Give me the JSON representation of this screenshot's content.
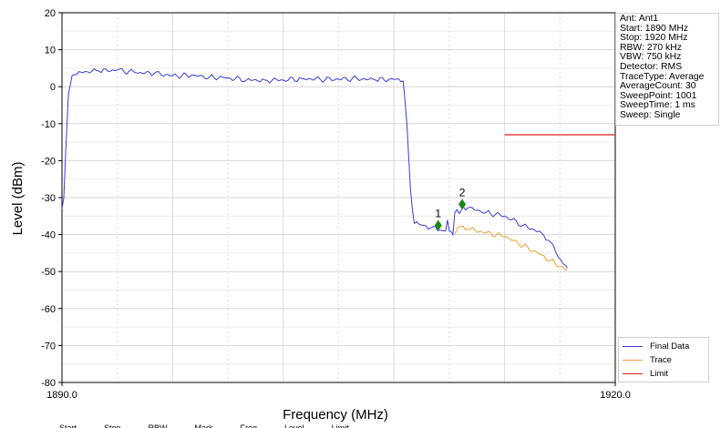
{
  "chart_data": {
    "type": "line",
    "xlabel": "Frequency (MHz)",
    "ylabel": "Level (dBm)",
    "xlim": [
      1890.0,
      1920.0
    ],
    "ylim": [
      -80,
      20
    ],
    "x_tick_labels": [
      "1890.0",
      "1920.0"
    ],
    "y_ticks": [
      20,
      10,
      0,
      -10,
      -20,
      -30,
      -40,
      -50,
      -60,
      -70,
      -80
    ],
    "grid": true,
    "legend_position": "bottom-right",
    "series": [
      {
        "name": "Final Data",
        "color": "#3b3bd6",
        "points": [
          [
            1890.0,
            -33
          ],
          [
            1890.1,
            -30
          ],
          [
            1890.2,
            -18
          ],
          [
            1890.35,
            -2
          ],
          [
            1890.55,
            3
          ],
          [
            1891.0,
            4
          ],
          [
            1892.0,
            4.2
          ],
          [
            1893.0,
            4.5
          ],
          [
            1894.0,
            3.8
          ],
          [
            1895.0,
            3.6
          ],
          [
            1896.0,
            3.0
          ],
          [
            1897.0,
            3.0
          ],
          [
            1898.0,
            2.6
          ],
          [
            1899.0,
            2.4
          ],
          [
            1900.0,
            1.8
          ],
          [
            1901.0,
            1.8
          ],
          [
            1902.0,
            1.8
          ],
          [
            1903.0,
            2.2
          ],
          [
            1904.0,
            2.0
          ],
          [
            1905.0,
            2.0
          ],
          [
            1906.0,
            2.2
          ],
          [
            1907.0,
            1.8
          ],
          [
            1908.0,
            2.0
          ],
          [
            1908.5,
            1.5
          ],
          [
            1908.7,
            -10
          ],
          [
            1908.9,
            -28
          ],
          [
            1909.1,
            -37
          ],
          [
            1909.5,
            -37.5
          ],
          [
            1910.0,
            -38.2
          ],
          [
            1910.5,
            -38.8
          ],
          [
            1910.8,
            -39
          ],
          [
            1910.9,
            -36
          ],
          [
            1911.0,
            -39
          ],
          [
            1911.2,
            -40
          ],
          [
            1911.3,
            -34
          ],
          [
            1912.0,
            -32.8
          ],
          [
            1913.0,
            -34
          ],
          [
            1914.0,
            -35
          ],
          [
            1915.0,
            -37.5
          ],
          [
            1916.0,
            -39.5
          ],
          [
            1916.5,
            -42
          ],
          [
            1916.9,
            -46
          ],
          [
            1917.2,
            -48
          ],
          [
            1917.4,
            -49
          ]
        ]
      },
      {
        "name": "Trace",
        "color": "#f0a030",
        "points": [
          [
            1911.3,
            -40
          ],
          [
            1911.5,
            -38
          ],
          [
            1912.0,
            -38.5
          ],
          [
            1913.0,
            -39.5
          ],
          [
            1914.0,
            -40.5
          ],
          [
            1915.0,
            -43
          ],
          [
            1916.0,
            -45.5
          ],
          [
            1916.5,
            -47
          ],
          [
            1917.0,
            -48.5
          ],
          [
            1917.4,
            -49.5
          ]
        ]
      },
      {
        "name": "Limit",
        "color": "#e02020",
        "points": [
          [
            1914.0,
            -13
          ],
          [
            1920.0,
            -13
          ]
        ]
      }
    ],
    "markers": [
      {
        "label": "1",
        "x": 1910.4,
        "y": -37.5,
        "color": "#1a8a1a"
      },
      {
        "label": "2",
        "x": 1911.7,
        "y": -31.8,
        "color": "#1a8a1a"
      }
    ]
  },
  "info_box": [
    "Ant: Ant1",
    "Start: 1890 MHz",
    "Stop: 1920 MHz",
    "RBW: 270 kHz",
    "VBW: 750 kHz",
    "Detector: RMS",
    "TraceType: Average",
    "AverageCount: 30",
    "SweepPoint: 1001",
    "SweepTime: 1 ms",
    "Sweep: Single"
  ],
  "bottom_strip": [
    "Start",
    "Stop",
    "RBW",
    "Mark",
    "Freq",
    "Level",
    "Limit"
  ]
}
